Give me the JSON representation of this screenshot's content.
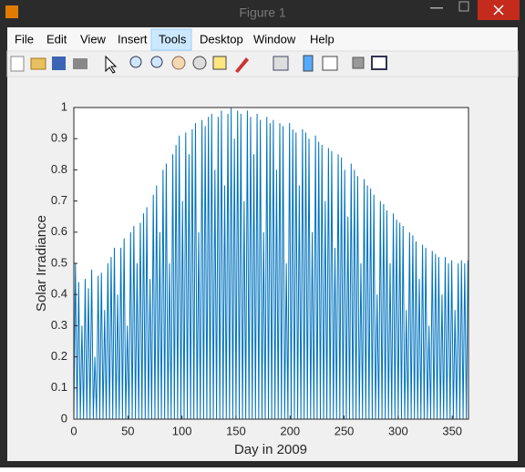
{
  "window": {
    "title": "Figure 1",
    "menu": [
      "File",
      "Edit",
      "View",
      "Insert",
      "Tools",
      "Desktop",
      "Window",
      "Help"
    ]
  },
  "chart_data": {
    "type": "line",
    "xlabel": "Day in 2009",
    "ylabel": "Solar Irradiance",
    "color": "#0072bd",
    "xlim": [
      0,
      365
    ],
    "ylim": [
      0,
      1
    ],
    "xticks": [
      0,
      50,
      100,
      150,
      200,
      250,
      300,
      350
    ],
    "yticks": [
      0,
      0.1,
      0.2,
      0.3,
      0.4,
      0.5,
      0.6,
      0.7,
      0.8,
      0.9,
      1
    ],
    "x": [
      0,
      1.5,
      3,
      4.5,
      6,
      7.5,
      9,
      10.5,
      12,
      13.5,
      15,
      16.5,
      18,
      19.5,
      21,
      22.5,
      24,
      25.5,
      27,
      28.5,
      30,
      31.5,
      33,
      34.5,
      36,
      37.5,
      39,
      40.5,
      42,
      43.5,
      45,
      46.5,
      48,
      49.5,
      51,
      52.5,
      54,
      55.5,
      57,
      58.5,
      60,
      61.5,
      63,
      64.5,
      66,
      67.5,
      69,
      70.5,
      72,
      73.5,
      75,
      76.5,
      78,
      79.5,
      81,
      82.5,
      84,
      85.5,
      87,
      88.5,
      90,
      91.5,
      93,
      94.5,
      96,
      97.5,
      99,
      100.5,
      102,
      103.5,
      105,
      106.5,
      108,
      109.5,
      111,
      112.5,
      114,
      115.5,
      117,
      118.5,
      120,
      121.5,
      123,
      124.5,
      126,
      127.5,
      129,
      130.5,
      132,
      133.5,
      135,
      136.5,
      138,
      139.5,
      141,
      142.5,
      144,
      145.5,
      147,
      148.5,
      150,
      151.5,
      153,
      154.5,
      156,
      157.5,
      159,
      160.5,
      162,
      163.5,
      165,
      166.5,
      168,
      169.5,
      171,
      172.5,
      174,
      175.5,
      177,
      178.5,
      180,
      181.5,
      183,
      184.5,
      186,
      187.5,
      189,
      190.5,
      192,
      193.5,
      195,
      196.5,
      198,
      199.5,
      201,
      202.5,
      204,
      205.5,
      207,
      208.5,
      210,
      211.5,
      213,
      214.5,
      216,
      217.5,
      219,
      220.5,
      222,
      223.5,
      225,
      226.5,
      228,
      229.5,
      231,
      232.5,
      234,
      235.5,
      237,
      238.5,
      240,
      241.5,
      243,
      244.5,
      246,
      247.5,
      249,
      250.5,
      252,
      253.5,
      255,
      256.5,
      258,
      259.5,
      261,
      262.5,
      264,
      265.5,
      267,
      268.5,
      270,
      271.5,
      273,
      274.5,
      276,
      277.5,
      279,
      280.5,
      282,
      283.5,
      285,
      286.5,
      288,
      289.5,
      291,
      292.5,
      294,
      295.5,
      297,
      298.5,
      300,
      301.5,
      303,
      304.5,
      306,
      307.5,
      309,
      310.5,
      312,
      313.5,
      315,
      316.5,
      318,
      319.5,
      321,
      322.5,
      324,
      325.5,
      327,
      328.5,
      330,
      331.5,
      333,
      334.5,
      336,
      337.5,
      339,
      340.5,
      342,
      343.5,
      345,
      346.5,
      348,
      349.5,
      351,
      352.5,
      354,
      355.5,
      357,
      358.5,
      360,
      361.5,
      363,
      364.5
    ],
    "values": [
      0,
      0.5,
      0,
      0.44,
      0,
      0.3,
      0,
      0.45,
      0,
      0.42,
      0,
      0.48,
      0,
      0.2,
      0,
      0.46,
      0,
      0.47,
      0,
      0.35,
      0,
      0.5,
      0,
      0.52,
      0,
      0.55,
      0,
      0.4,
      0,
      0.55,
      0,
      0.58,
      0,
      0.3,
      0,
      0.6,
      0,
      0.62,
      0,
      0.5,
      0,
      0.63,
      0,
      0.66,
      0,
      0.68,
      0,
      0.45,
      0,
      0.72,
      0,
      0.75,
      0,
      0.6,
      0,
      0.8,
      0,
      0.82,
      0,
      0.5,
      0,
      0.85,
      0,
      0.88,
      0,
      0.91,
      0,
      0.7,
      0,
      0.92,
      0,
      0.85,
      0,
      0.93,
      0,
      0.95,
      0,
      0.6,
      0,
      0.96,
      0,
      0.94,
      0,
      0.97,
      0,
      0.98,
      0,
      0.8,
      0,
      0.97,
      0,
      0.99,
      0,
      0.75,
      0,
      0.98,
      0,
      1.0,
      0,
      0.9,
      0,
      0.99,
      0,
      0.98,
      0,
      0.7,
      0,
      0.99,
      0,
      0.97,
      0,
      0.85,
      0,
      0.98,
      0,
      0.96,
      0,
      0.6,
      0,
      0.97,
      0,
      0.95,
      0,
      0.96,
      0,
      0.8,
      0,
      0.95,
      0,
      0.94,
      0,
      0.5,
      0,
      0.95,
      0,
      0.93,
      0,
      0.92,
      0,
      0.75,
      0,
      0.93,
      0,
      0.92,
      0,
      0.9,
      0,
      0.6,
      0,
      0.91,
      0,
      0.89,
      0,
      0.88,
      0,
      0.7,
      0,
      0.87,
      0,
      0.86,
      0,
      0.55,
      0,
      0.85,
      0,
      0.84,
      0,
      0.8,
      0,
      0.65,
      0,
      0.82,
      0,
      0.8,
      0,
      0.78,
      0,
      0.5,
      0,
      0.77,
      0,
      0.75,
      0,
      0.74,
      0,
      0.72,
      0,
      0.4,
      0,
      0.7,
      0,
      0.69,
      0,
      0.67,
      0,
      0.5,
      0,
      0.66,
      0,
      0.64,
      0,
      0.63,
      0,
      0.62,
      0,
      0.35,
      0,
      0.6,
      0,
      0.59,
      0,
      0.57,
      0,
      0.45,
      0,
      0.56,
      0,
      0.55,
      0,
      0.3,
      0,
      0.54,
      0,
      0.53,
      0,
      0.52,
      0,
      0.4,
      0,
      0.52,
      0,
      0.5,
      0,
      0.51,
      0,
      0.35,
      0,
      0.5,
      0,
      0.51,
      0,
      0.5,
      0,
      0.51
    ]
  }
}
